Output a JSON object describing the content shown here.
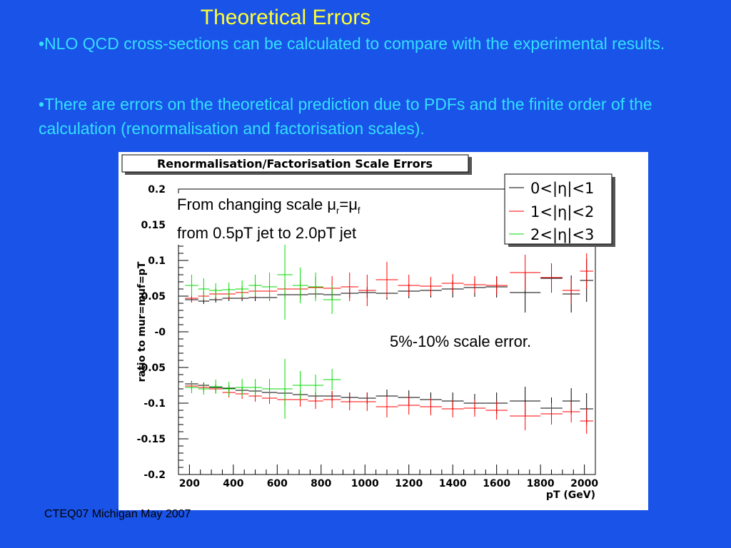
{
  "slide": {
    "title": "Theoretical Errors",
    "bullet1": "•NLO QCD cross-sections can be calculated to compare with the experimental results.",
    "bullet2": "•There are errors on the theoretical prediction due to PDFs and the finite order of the calculation (renormalisation and factorisation scales).",
    "footer": "CTEQ07 Michigan May 2007"
  },
  "annotations": {
    "scale_text_prefix": "From changing scale μ",
    "scale_sub_r": "r",
    "scale_eq": "=μ",
    "scale_sub_f": "f",
    "scale_line2": "from 0.5pT jet to 2.0pT jet",
    "scale_error": "5%-10% scale error."
  },
  "chart_data": {
    "type": "scatter",
    "title": "Renormalisation/Factorisation Scale Errors",
    "xlabel": "pT (GeV)",
    "ylabel": "ratio to mur=muf=pT",
    "xlim": [
      150,
      2050
    ],
    "ylim": [
      -0.2,
      0.2
    ],
    "xticks": [
      200,
      400,
      600,
      800,
      1000,
      1200,
      1400,
      1600,
      1800,
      2000
    ],
    "xtick_labels": [
      "200",
      "400",
      "600",
      "800",
      "1000",
      "1200",
      "1400",
      "1600",
      "1800",
      "2000"
    ],
    "yticks": [
      -0.2,
      -0.15,
      -0.1,
      -0.05,
      0,
      0.05,
      0.1,
      0.15,
      0.2
    ],
    "ytick_labels": [
      "-0.2",
      "-0.15",
      "-0.1",
      "-0.05",
      "-0",
      "0.05",
      "0.1",
      "0.15",
      "0.2"
    ],
    "legend_position": "top-right",
    "series": [
      {
        "name": "0<|η|<1",
        "color": "#000000",
        "points": [
          {
            "x": 210,
            "xerr": 30,
            "y": 0.045,
            "yerr": 0.004
          },
          {
            "x": 265,
            "xerr": 25,
            "y": 0.043,
            "yerr": 0.004
          },
          {
            "x": 320,
            "xerr": 30,
            "y": 0.045,
            "yerr": 0.004
          },
          {
            "x": 380,
            "xerr": 30,
            "y": 0.047,
            "yerr": 0.004
          },
          {
            "x": 440,
            "xerr": 30,
            "y": 0.047,
            "yerr": 0.004
          },
          {
            "x": 500,
            "xerr": 30,
            "y": 0.048,
            "yerr": 0.005
          },
          {
            "x": 565,
            "xerr": 35,
            "y": 0.048,
            "yerr": 0.005
          },
          {
            "x": 635,
            "xerr": 35,
            "y": 0.052,
            "yerr": 0.005
          },
          {
            "x": 705,
            "xerr": 35,
            "y": 0.052,
            "yerr": 0.006
          },
          {
            "x": 775,
            "xerr": 35,
            "y": 0.053,
            "yerr": 0.006
          },
          {
            "x": 850,
            "xerr": 40,
            "y": 0.052,
            "yerr": 0.007
          },
          {
            "x": 930,
            "xerr": 40,
            "y": 0.054,
            "yerr": 0.007
          },
          {
            "x": 1010,
            "xerr": 40,
            "y": 0.055,
            "yerr": 0.008
          },
          {
            "x": 1100,
            "xerr": 50,
            "y": 0.054,
            "yerr": 0.009
          },
          {
            "x": 1200,
            "xerr": 50,
            "y": 0.057,
            "yerr": 0.01
          },
          {
            "x": 1300,
            "xerr": 50,
            "y": 0.058,
            "yerr": 0.01
          },
          {
            "x": 1400,
            "xerr": 50,
            "y": 0.06,
            "yerr": 0.012
          },
          {
            "x": 1500,
            "xerr": 50,
            "y": 0.062,
            "yerr": 0.013
          },
          {
            "x": 1600,
            "xerr": 50,
            "y": 0.063,
            "yerr": 0.015
          },
          {
            "x": 1730,
            "xerr": 70,
            "y": 0.055,
            "yerr": 0.028
          },
          {
            "x": 1850,
            "xerr": 50,
            "y": 0.075,
            "yerr": 0.02
          },
          {
            "x": 1940,
            "xerr": 40,
            "y": 0.053,
            "yerr": 0.026
          },
          {
            "x": 2010,
            "xerr": 30,
            "y": 0.072,
            "yerr": 0.03
          }
        ]
      },
      {
        "name": "1<|η|<2",
        "color": "#ff0000",
        "points": [
          {
            "x": 210,
            "xerr": 30,
            "y": 0.047,
            "yerr": 0.006
          },
          {
            "x": 265,
            "xerr": 25,
            "y": 0.05,
            "yerr": 0.007
          },
          {
            "x": 320,
            "xerr": 30,
            "y": 0.053,
            "yerr": 0.008
          },
          {
            "x": 380,
            "xerr": 30,
            "y": 0.053,
            "yerr": 0.008
          },
          {
            "x": 440,
            "xerr": 30,
            "y": 0.055,
            "yerr": 0.009
          },
          {
            "x": 500,
            "xerr": 30,
            "y": 0.057,
            "yerr": 0.01
          },
          {
            "x": 565,
            "xerr": 35,
            "y": 0.057,
            "yerr": 0.01
          },
          {
            "x": 635,
            "xerr": 35,
            "y": 0.06,
            "yerr": 0.012
          },
          {
            "x": 705,
            "xerr": 35,
            "y": 0.06,
            "yerr": 0.013
          },
          {
            "x": 775,
            "xerr": 35,
            "y": 0.062,
            "yerr": 0.015
          },
          {
            "x": 850,
            "xerr": 40,
            "y": 0.061,
            "yerr": 0.017
          },
          {
            "x": 930,
            "xerr": 40,
            "y": 0.063,
            "yerr": 0.02
          },
          {
            "x": 1010,
            "xerr": 40,
            "y": 0.058,
            "yerr": 0.022
          },
          {
            "x": 1100,
            "xerr": 50,
            "y": 0.073,
            "yerr": 0.025
          },
          {
            "x": 1200,
            "xerr": 50,
            "y": 0.065,
            "yerr": 0.015
          },
          {
            "x": 1300,
            "xerr": 50,
            "y": 0.064,
            "yerr": 0.013
          },
          {
            "x": 1400,
            "xerr": 50,
            "y": 0.068,
            "yerr": 0.013
          },
          {
            "x": 1500,
            "xerr": 50,
            "y": 0.066,
            "yerr": 0.012
          },
          {
            "x": 1600,
            "xerr": 50,
            "y": 0.065,
            "yerr": 0.013
          },
          {
            "x": 1730,
            "xerr": 70,
            "y": 0.083,
            "yerr": 0.025
          },
          {
            "x": 1850,
            "xerr": 50,
            "y": 0.076,
            "yerr": 0.02
          },
          {
            "x": 1940,
            "xerr": 40,
            "y": 0.058,
            "yerr": 0.018
          },
          {
            "x": 2010,
            "xerr": 30,
            "y": 0.085,
            "yerr": 0.025
          }
        ]
      },
      {
        "name": "2<|η|<3",
        "color": "#00dd00",
        "points": [
          {
            "x": 210,
            "xerr": 30,
            "y": 0.065,
            "yerr": 0.015
          },
          {
            "x": 265,
            "xerr": 25,
            "y": 0.06,
            "yerr": 0.015
          },
          {
            "x": 320,
            "xerr": 30,
            "y": 0.058,
            "yerr": 0.01
          },
          {
            "x": 380,
            "xerr": 30,
            "y": 0.059,
            "yerr": 0.01
          },
          {
            "x": 440,
            "xerr": 30,
            "y": 0.06,
            "yerr": 0.012
          },
          {
            "x": 500,
            "xerr": 30,
            "y": 0.065,
            "yerr": 0.015
          },
          {
            "x": 565,
            "xerr": 35,
            "y": 0.063,
            "yerr": 0.02
          },
          {
            "x": 635,
            "xerr": 35,
            "y": 0.08,
            "yerr": 0.063
          },
          {
            "x": 705,
            "xerr": 35,
            "y": 0.065,
            "yerr": 0.025
          },
          {
            "x": 775,
            "xerr": 35,
            "y": 0.063,
            "yerr": 0.02
          },
          {
            "x": 850,
            "xerr": 40,
            "y": 0.045,
            "yerr": 0.02
          }
        ]
      }
    ],
    "series_lower": [
      {
        "name": "0<|η|<1",
        "color": "#000000",
        "points": [
          {
            "x": 210,
            "xerr": 30,
            "y": -0.073,
            "yerr": 0.004
          },
          {
            "x": 265,
            "xerr": 25,
            "y": -0.075,
            "yerr": 0.004
          },
          {
            "x": 320,
            "xerr": 30,
            "y": -0.078,
            "yerr": 0.004
          },
          {
            "x": 380,
            "xerr": 30,
            "y": -0.079,
            "yerr": 0.004
          },
          {
            "x": 440,
            "xerr": 30,
            "y": -0.082,
            "yerr": 0.004
          },
          {
            "x": 500,
            "xerr": 30,
            "y": -0.083,
            "yerr": 0.005
          },
          {
            "x": 565,
            "xerr": 35,
            "y": -0.085,
            "yerr": 0.005
          },
          {
            "x": 635,
            "xerr": 35,
            "y": -0.086,
            "yerr": 0.005
          },
          {
            "x": 705,
            "xerr": 35,
            "y": -0.088,
            "yerr": 0.006
          },
          {
            "x": 775,
            "xerr": 35,
            "y": -0.09,
            "yerr": 0.006
          },
          {
            "x": 850,
            "xerr": 40,
            "y": -0.09,
            "yerr": 0.007
          },
          {
            "x": 930,
            "xerr": 40,
            "y": -0.092,
            "yerr": 0.007
          },
          {
            "x": 1010,
            "xerr": 40,
            "y": -0.093,
            "yerr": 0.008
          },
          {
            "x": 1100,
            "xerr": 50,
            "y": -0.09,
            "yerr": 0.009
          },
          {
            "x": 1200,
            "xerr": 50,
            "y": -0.092,
            "yerr": 0.01
          },
          {
            "x": 1300,
            "xerr": 50,
            "y": -0.095,
            "yerr": 0.01
          },
          {
            "x": 1400,
            "xerr": 50,
            "y": -0.097,
            "yerr": 0.012
          },
          {
            "x": 1500,
            "xerr": 50,
            "y": -0.1,
            "yerr": 0.013
          },
          {
            "x": 1600,
            "xerr": 50,
            "y": -0.1,
            "yerr": 0.015
          },
          {
            "x": 1730,
            "xerr": 70,
            "y": -0.097,
            "yerr": 0.02
          },
          {
            "x": 1850,
            "xerr": 50,
            "y": -0.107,
            "yerr": 0.015
          },
          {
            "x": 1940,
            "xerr": 40,
            "y": -0.097,
            "yerr": 0.018
          },
          {
            "x": 2010,
            "xerr": 30,
            "y": -0.108,
            "yerr": 0.022
          }
        ]
      },
      {
        "name": "1<|η|<2",
        "color": "#ff0000",
        "points": [
          {
            "x": 210,
            "xerr": 30,
            "y": -0.076,
            "yerr": 0.006
          },
          {
            "x": 265,
            "xerr": 25,
            "y": -0.078,
            "yerr": 0.006
          },
          {
            "x": 320,
            "xerr": 30,
            "y": -0.08,
            "yerr": 0.006
          },
          {
            "x": 380,
            "xerr": 30,
            "y": -0.085,
            "yerr": 0.007
          },
          {
            "x": 440,
            "xerr": 30,
            "y": -0.087,
            "yerr": 0.007
          },
          {
            "x": 500,
            "xerr": 30,
            "y": -0.09,
            "yerr": 0.008
          },
          {
            "x": 565,
            "xerr": 35,
            "y": -0.093,
            "yerr": 0.008
          },
          {
            "x": 635,
            "xerr": 35,
            "y": -0.095,
            "yerr": 0.009
          },
          {
            "x": 705,
            "xerr": 35,
            "y": -0.095,
            "yerr": 0.01
          },
          {
            "x": 775,
            "xerr": 35,
            "y": -0.097,
            "yerr": 0.011
          },
          {
            "x": 850,
            "xerr": 40,
            "y": -0.095,
            "yerr": 0.012
          },
          {
            "x": 930,
            "xerr": 40,
            "y": -0.098,
            "yerr": 0.012
          },
          {
            "x": 1010,
            "xerr": 40,
            "y": -0.098,
            "yerr": 0.013
          },
          {
            "x": 1100,
            "xerr": 50,
            "y": -0.105,
            "yerr": 0.015
          },
          {
            "x": 1200,
            "xerr": 50,
            "y": -0.103,
            "yerr": 0.013
          },
          {
            "x": 1300,
            "xerr": 50,
            "y": -0.105,
            "yerr": 0.012
          },
          {
            "x": 1400,
            "xerr": 50,
            "y": -0.108,
            "yerr": 0.012
          },
          {
            "x": 1500,
            "xerr": 50,
            "y": -0.107,
            "yerr": 0.012
          },
          {
            "x": 1600,
            "xerr": 50,
            "y": -0.11,
            "yerr": 0.013
          },
          {
            "x": 1730,
            "xerr": 70,
            "y": -0.118,
            "yerr": 0.02
          },
          {
            "x": 1850,
            "xerr": 50,
            "y": -0.115,
            "yerr": 0.015
          },
          {
            "x": 1940,
            "xerr": 40,
            "y": -0.112,
            "yerr": 0.015
          },
          {
            "x": 2010,
            "xerr": 30,
            "y": -0.125,
            "yerr": 0.018
          }
        ]
      },
      {
        "name": "2<|η|<3",
        "color": "#00dd00",
        "points": [
          {
            "x": 210,
            "xerr": 30,
            "y": -0.078,
            "yerr": 0.008
          },
          {
            "x": 265,
            "xerr": 25,
            "y": -0.08,
            "yerr": 0.008
          },
          {
            "x": 320,
            "xerr": 30,
            "y": -0.077,
            "yerr": 0.01
          },
          {
            "x": 380,
            "xerr": 30,
            "y": -0.08,
            "yerr": 0.01
          },
          {
            "x": 440,
            "xerr": 30,
            "y": -0.078,
            "yerr": 0.012
          },
          {
            "x": 500,
            "xerr": 30,
            "y": -0.078,
            "yerr": 0.012
          },
          {
            "x": 565,
            "xerr": 35,
            "y": -0.08,
            "yerr": 0.014
          },
          {
            "x": 635,
            "xerr": 35,
            "y": -0.08,
            "yerr": 0.042
          },
          {
            "x": 705,
            "xerr": 35,
            "y": -0.075,
            "yerr": 0.02
          },
          {
            "x": 775,
            "xerr": 35,
            "y": -0.075,
            "yerr": 0.015
          },
          {
            "x": 850,
            "xerr": 40,
            "y": -0.067,
            "yerr": 0.015
          }
        ]
      }
    ]
  }
}
